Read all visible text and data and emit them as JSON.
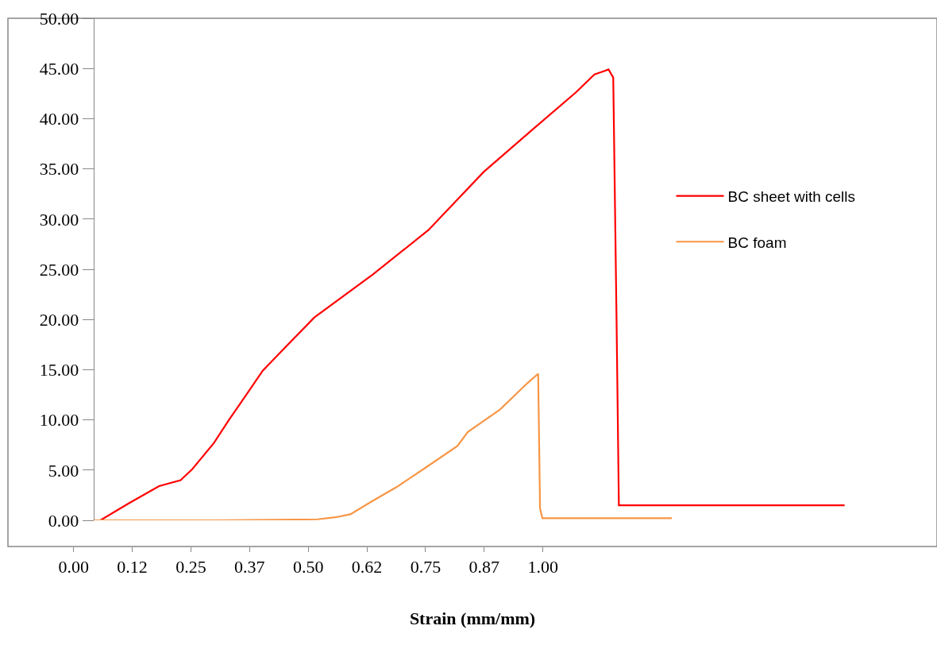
{
  "chart_data": {
    "type": "line",
    "xlabel": "Strain (mm/mm)",
    "legend": "right",
    "grid": false,
    "marker": "none",
    "line_style": "solid",
    "xlim": [
      -0.14,
      1.84
    ],
    "xticks": [
      {
        "value": 0,
        "label": "0.00"
      },
      {
        "value": 0.125,
        "label": "0.12"
      },
      {
        "value": 0.25,
        "label": "0.25"
      },
      {
        "value": 0.375,
        "label": "0.37"
      },
      {
        "value": 0.5,
        "label": "0.50"
      },
      {
        "value": 0.625,
        "label": "0.62"
      },
      {
        "value": 0.75,
        "label": "0.75"
      },
      {
        "value": 0.875,
        "label": "0.87"
      },
      {
        "value": 1,
        "label": "1.00"
      }
    ],
    "ylim": [
      0,
      50
    ],
    "yticks": [
      {
        "value": 0,
        "label": "0.00"
      },
      {
        "value": 5,
        "label": "5.00"
      },
      {
        "value": 10,
        "label": "10.00"
      },
      {
        "value": 15,
        "label": "15.00"
      },
      {
        "value": 20,
        "label": "20.00"
      },
      {
        "value": 25,
        "label": "25.00"
      },
      {
        "value": 30,
        "label": "30.00"
      },
      {
        "value": 35,
        "label": "35.00"
      },
      {
        "value": 40,
        "label": "40.00"
      },
      {
        "value": 45,
        "label": "45.00"
      },
      {
        "value": 50,
        "label": "50.00"
      }
    ],
    "series": [
      {
        "name": "BC sheet with cells",
        "color": "#ff0000",
        "x": [
          0.057,
          0.118,
          0.182,
          0.228,
          0.253,
          0.299,
          0.331,
          0.371,
          0.403,
          0.442,
          0.513,
          0.638,
          0.756,
          0.874,
          0.975,
          1.07,
          1.11,
          1.14,
          1.15,
          1.157,
          1.162,
          1.643
        ],
        "values": [
          0,
          1.7,
          3.4,
          4.0,
          5.1,
          7.7,
          10.0,
          12.7,
          14.9,
          16.8,
          20.2,
          24.5,
          28.9,
          34.7,
          38.8,
          42.6,
          44.4,
          44.9,
          44.1,
          20.2,
          1.5,
          1.5
        ]
      },
      {
        "name": "BC foam",
        "color": "#f79646",
        "x": [
          0.042,
          0.3,
          0.52,
          0.558,
          0.59,
          0.636,
          0.688,
          0.752,
          0.818,
          0.84,
          0.908,
          0.968,
          0.99,
          0.994,
          0.999,
          1.275
        ],
        "values": [
          0,
          0,
          0.1,
          0.3,
          0.6,
          1.9,
          3.3,
          5.3,
          7.4,
          8.8,
          11.0,
          13.7,
          14.6,
          1.2,
          0.2,
          0.2
        ]
      }
    ]
  }
}
